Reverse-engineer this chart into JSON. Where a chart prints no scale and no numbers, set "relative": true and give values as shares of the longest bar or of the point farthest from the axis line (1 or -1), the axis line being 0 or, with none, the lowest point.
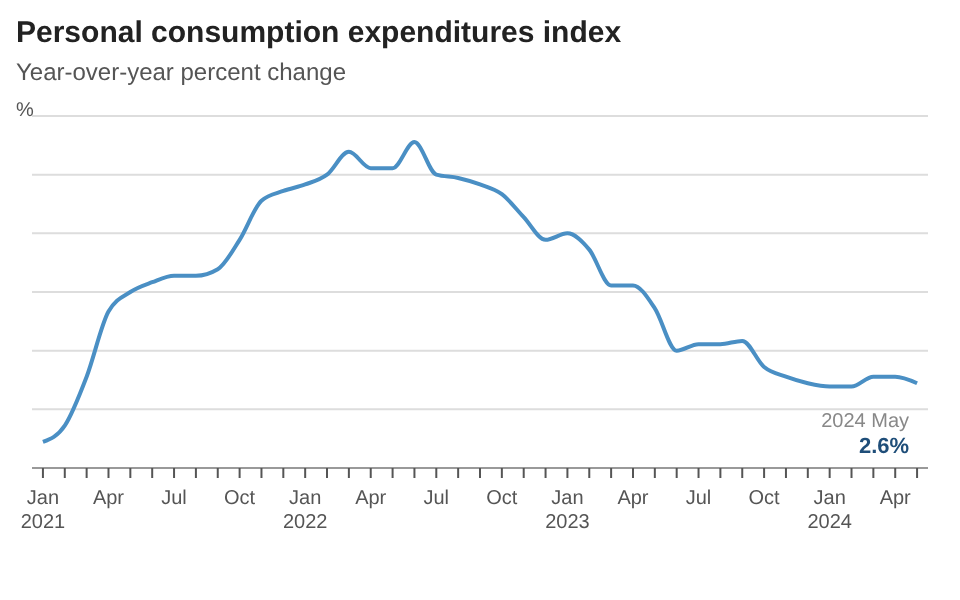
{
  "chart_data": {
    "type": "line",
    "title": "Personal consumption expenditures index",
    "subtitle": "Year-over-year percent change",
    "ylabel": "%",
    "relative": true,
    "categories": [
      "Jan 2021",
      null,
      null,
      "Apr",
      null,
      null,
      "Jul",
      null,
      null,
      "Oct",
      null,
      null,
      "Jan 2022",
      null,
      null,
      "Apr",
      null,
      null,
      "Jul",
      null,
      null,
      "Oct",
      null,
      null,
      "Jan 2023",
      null,
      null,
      "Apr",
      null,
      null,
      "Jul",
      null,
      null,
      "Oct",
      null,
      null,
      "Jan 2024",
      null,
      null,
      "Apr",
      null
    ],
    "series": [
      {
        "color": "#4a8fc4",
        "values": [
          0.08,
          0.13,
          0.28,
          0.48,
          0.54,
          0.57,
          0.59,
          0.59,
          0.61,
          0.7,
          0.82,
          0.85,
          0.87,
          0.9,
          0.97,
          0.92,
          0.92,
          1,
          0.9,
          0.89,
          0.87,
          0.84,
          0.77,
          0.7,
          0.72,
          0.67,
          0.56,
          0.56,
          0.49,
          0.36,
          0.38,
          0.38,
          0.39,
          0.31,
          0.28,
          0.26,
          0.25,
          0.25,
          0.28,
          0.28,
          0.26
        ]
      }
    ],
    "annotations": [
      "2024 May",
      "2.6%"
    ],
    "grid": "y",
    "legend": false,
    "marker": "none",
    "line_style": "solid"
  }
}
